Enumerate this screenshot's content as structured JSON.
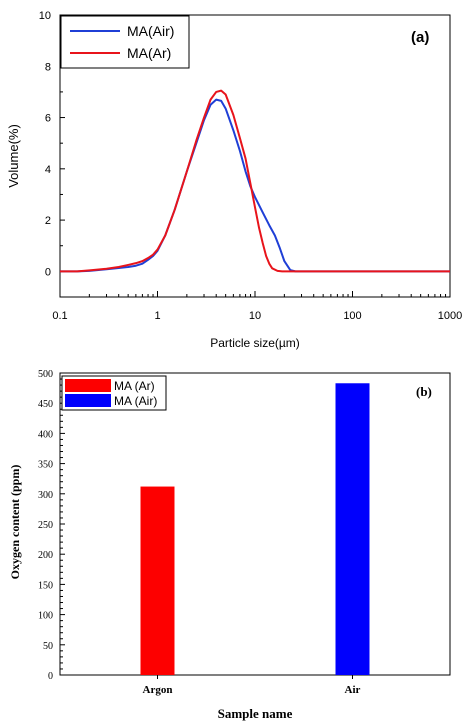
{
  "chart_data": [
    {
      "type": "line",
      "panel_label": "(a)",
      "xlabel": "Particle size(µm)",
      "ylabel": "Volume(%)",
      "xscale": "log",
      "xlim": [
        0.1,
        1000
      ],
      "ylim": [
        -1,
        10
      ],
      "x_ticks": [
        "0.1",
        "1",
        "10",
        "100",
        "1000"
      ],
      "y_ticks": [
        "0",
        "2",
        "4",
        "6",
        "8",
        "10"
      ],
      "legend_position": "top-left",
      "series": [
        {
          "name": "MA(Air)",
          "color": "#1f3fd6",
          "points": [
            [
              0.1,
              0
            ],
            [
              0.15,
              0
            ],
            [
              0.2,
              0.02
            ],
            [
              0.3,
              0.08
            ],
            [
              0.4,
              0.13
            ],
            [
              0.5,
              0.17
            ],
            [
              0.6,
              0.22
            ],
            [
              0.7,
              0.3
            ],
            [
              0.8,
              0.45
            ],
            [
              0.9,
              0.6
            ],
            [
              1.0,
              0.8
            ],
            [
              1.2,
              1.4
            ],
            [
              1.5,
              2.4
            ],
            [
              2.0,
              3.9
            ],
            [
              2.5,
              5.0
            ],
            [
              3.0,
              5.9
            ],
            [
              3.5,
              6.5
            ],
            [
              4.0,
              6.7
            ],
            [
              4.5,
              6.65
            ],
            [
              5.0,
              6.35
            ],
            [
              6.0,
              5.5
            ],
            [
              7.0,
              4.7
            ],
            [
              8.0,
              3.9
            ],
            [
              9.0,
              3.3
            ],
            [
              10.0,
              2.9
            ],
            [
              12.0,
              2.3
            ],
            [
              14.0,
              1.8
            ],
            [
              16.0,
              1.4
            ],
            [
              18.0,
              0.9
            ],
            [
              20.0,
              0.4
            ],
            [
              23.0,
              0.05
            ],
            [
              26.0,
              0
            ],
            [
              40.0,
              0
            ],
            [
              100.0,
              0
            ],
            [
              1000.0,
              0
            ]
          ]
        },
        {
          "name": "MA(Ar)",
          "color": "#e8141b",
          "points": [
            [
              0.1,
              0
            ],
            [
              0.15,
              0
            ],
            [
              0.2,
              0.04
            ],
            [
              0.3,
              0.1
            ],
            [
              0.4,
              0.17
            ],
            [
              0.5,
              0.25
            ],
            [
              0.6,
              0.32
            ],
            [
              0.7,
              0.4
            ],
            [
              0.8,
              0.52
            ],
            [
              0.9,
              0.65
            ],
            [
              1.0,
              0.85
            ],
            [
              1.2,
              1.4
            ],
            [
              1.5,
              2.4
            ],
            [
              2.0,
              3.9
            ],
            [
              2.5,
              5.1
            ],
            [
              3.0,
              6.0
            ],
            [
              3.5,
              6.7
            ],
            [
              4.0,
              7.0
            ],
            [
              4.5,
              7.05
            ],
            [
              5.0,
              6.9
            ],
            [
              6.0,
              6.1
            ],
            [
              7.0,
              5.2
            ],
            [
              8.0,
              4.4
            ],
            [
              9.0,
              3.4
            ],
            [
              10.0,
              2.5
            ],
            [
              11.0,
              1.7
            ],
            [
              12.0,
              1.1
            ],
            [
              13.0,
              0.6
            ],
            [
              14.0,
              0.3
            ],
            [
              15.0,
              0.12
            ],
            [
              17.0,
              0.02
            ],
            [
              19.0,
              0
            ],
            [
              30.0,
              0
            ],
            [
              100.0,
              0
            ],
            [
              1000.0,
              0
            ]
          ]
        }
      ]
    },
    {
      "type": "bar",
      "panel_label": "(b)",
      "xlabel": "Sample name",
      "ylabel": "Oxygen content (ppm)",
      "categories": [
        "Argon",
        "Air"
      ],
      "ylim": [
        0,
        500
      ],
      "y_ticks": [
        "0",
        "50",
        "100",
        "150",
        "200",
        "250",
        "300",
        "350",
        "400",
        "450",
        "500"
      ],
      "legend_position": "top-left",
      "series": [
        {
          "name": "MA (Ar)",
          "color": "#fd0000",
          "category": "Argon",
          "value": 312
        },
        {
          "name": "MA (Air)",
          "color": "#0000fd",
          "category": "Air",
          "value": 483
        }
      ]
    }
  ]
}
